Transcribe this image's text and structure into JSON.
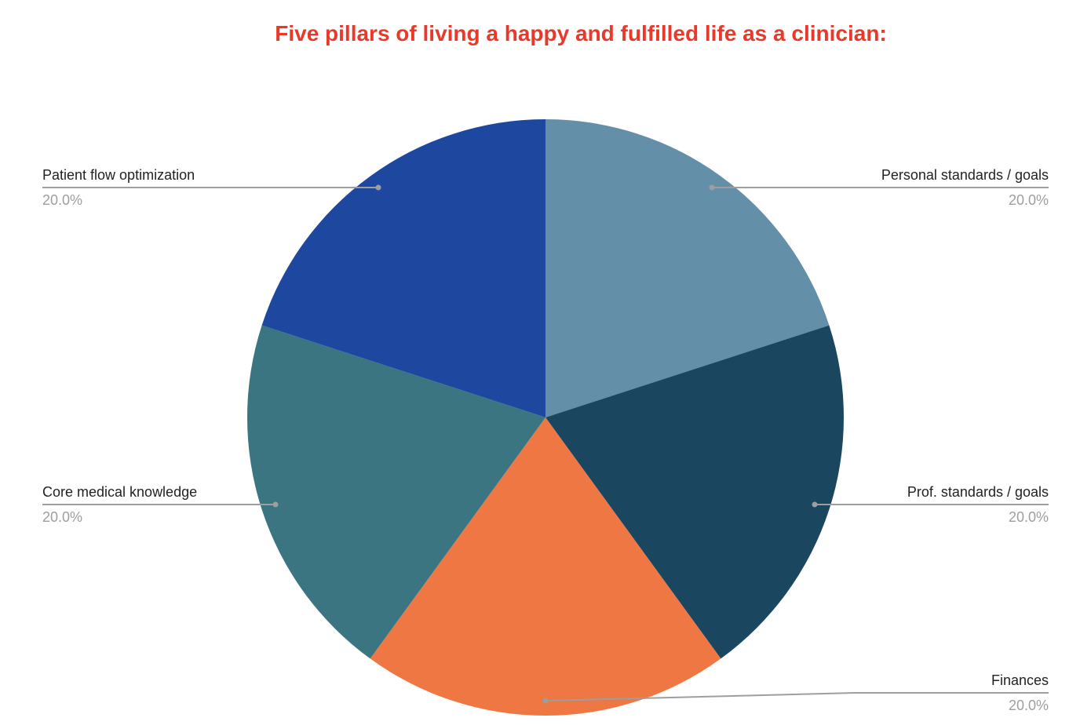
{
  "chart_data": {
    "type": "pie",
    "title": "Five pillars of living a happy and fulfilled life as a clinician:",
    "title_color": "#e8392a",
    "slices": [
      {
        "label": "Personal standards / goals",
        "value": 20.0,
        "percent_label": "20.0%",
        "color": "#648fa8"
      },
      {
        "label": "Prof. standards / goals",
        "value": 20.0,
        "percent_label": "20.0%",
        "color": "#1a4660"
      },
      {
        "label": "Finances",
        "value": 20.0,
        "percent_label": "20.0%",
        "color": "#ee7744"
      },
      {
        "label": "Core medical knowledge",
        "value": 20.0,
        "percent_label": "20.0%",
        "color": "#3a7581"
      },
      {
        "label": "Patient flow optimization",
        "value": 20.0,
        "percent_label": "20.0%",
        "color": "#1e489f"
      }
    ],
    "start_angle": "12 o'clock",
    "direction": "clockwise",
    "leader_line_color": "#9e9e9e"
  }
}
